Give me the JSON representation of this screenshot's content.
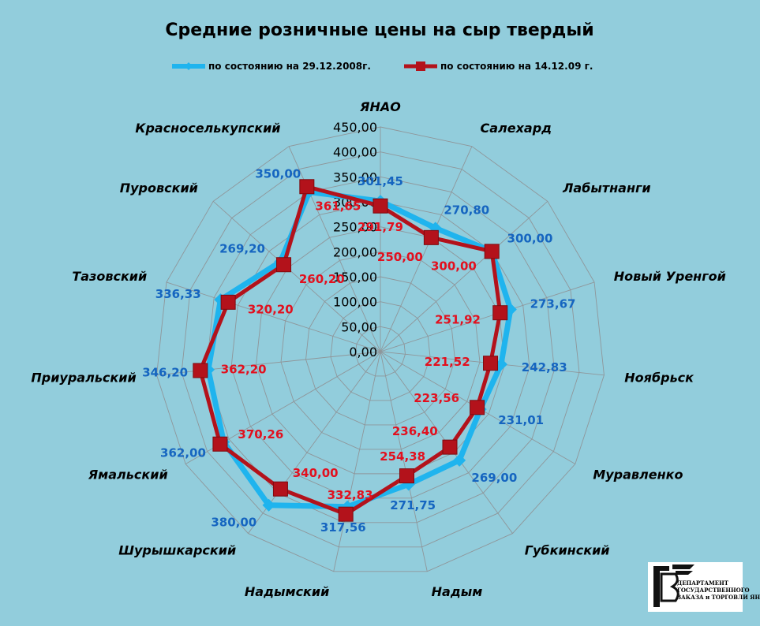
{
  "chart_data": {
    "type": "radar",
    "title": "Средние розничные цены на сыр твердый",
    "categories": [
      "ЯНАО",
      "Салехард",
      "Лабытнанги",
      "Новый Уренгой",
      "Ноябрьск",
      "Муравленко",
      "Губкинский",
      "Надым",
      "Надымский",
      "Шурышкарский",
      "Ямальский",
      "Приуральский",
      "Тазовский",
      "Пуровский",
      "Красноселькупский"
    ],
    "series": [
      {
        "name": "по состоянию на 29.12.2008г.",
        "color": "#1fb4ee",
        "marker": "diamond",
        "values": [
          301.45,
          270.8,
          300.0,
          273.67,
          242.83,
          231.01,
          269.0,
          271.75,
          317.56,
          380.0,
          362.0,
          346.2,
          336.33,
          269.2,
          350.0
        ],
        "labels": [
          "301,45",
          "270,80",
          "300,00",
          "273,67",
          "242,83",
          "231,01",
          "269,00",
          "271,75",
          "317,56",
          "380,00",
          "362,00",
          "346,20",
          "336,33",
          "269,20",
          "350,00"
        ]
      },
      {
        "name": "по состоянию на 14.12.09 г.",
        "color": "#b3121b",
        "marker": "square",
        "values": [
          291.79,
          250.0,
          300.0,
          251.92,
          221.52,
          223.56,
          236.4,
          254.38,
          332.83,
          340.0,
          370.26,
          362.2,
          320.2,
          260.2,
          361.65
        ],
        "labels": [
          "291,79",
          "250,00",
          "300,00",
          "251,92",
          "221,52",
          "223,56",
          "236,40",
          "254,38",
          "332,83",
          "340,00",
          "370,26",
          "362,20",
          "320,20",
          "260,20",
          "361,65"
        ]
      }
    ],
    "ticks": [
      "0,00",
      "50,00",
      "100,00",
      "150,00",
      "200,00",
      "250,00",
      "300,00",
      "350,00",
      "400,00",
      "450,00"
    ],
    "range": [
      0,
      450
    ],
    "grid": true,
    "legend_position": "top"
  },
  "logo": {
    "lines": [
      "ДЕПАРТАМЕНТ",
      "ГОСУДАРСТВЕННОГО",
      "ЗАКАЗА и ТОРГОВЛИ ЯНАО"
    ]
  }
}
